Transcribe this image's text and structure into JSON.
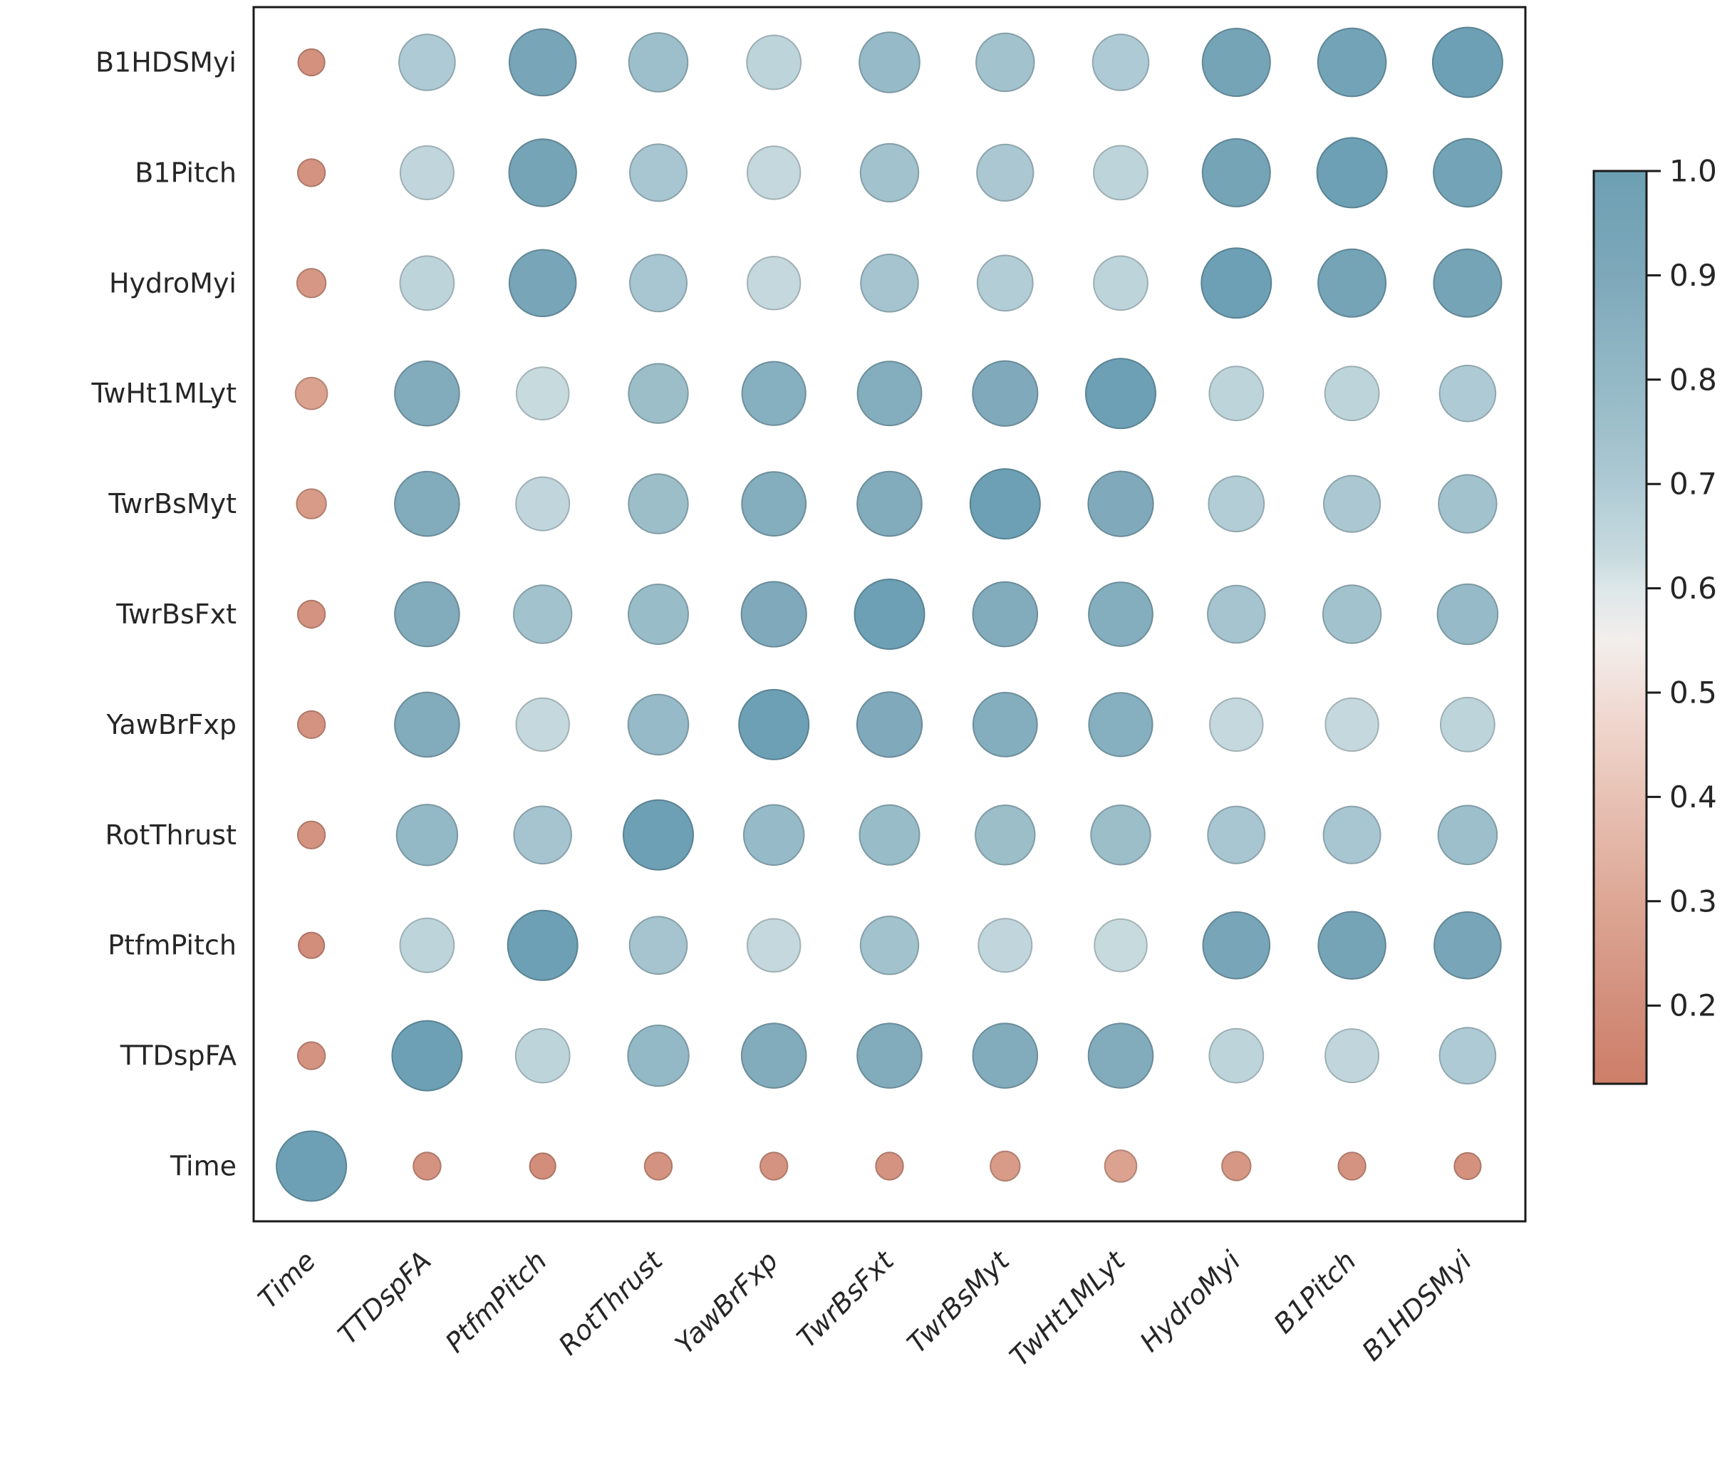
{
  "chart_data": {
    "type": "heatmap",
    "variant": "correlation-bubble-matrix",
    "title": "",
    "xlabel": "",
    "ylabel": "",
    "grid": false,
    "background_color": "#ffffff",
    "axis_color": "#1a1a1a",
    "tick_label_color": "#262626",
    "x_categories_left_to_right": [
      "Time",
      "TTDspFA",
      "PtfmPitch",
      "RotThrust",
      "YawBrFxp",
      "TwrBsFxt",
      "TwrBsMyt",
      "TwHt1MLyt",
      "HydroMyi",
      "B1Pitch",
      "B1HDSMyi"
    ],
    "rows_top_to_bottom": [
      {
        "label": "B1HDSMyi",
        "values": [
          0.21,
          0.7,
          0.93,
          0.76,
          0.66,
          0.79,
          0.74,
          0.7,
          0.95,
          0.96,
          1.0
        ]
      },
      {
        "label": "B1Pitch",
        "values": [
          0.22,
          0.65,
          0.94,
          0.72,
          0.64,
          0.74,
          0.71,
          0.66,
          0.95,
          1.0,
          0.96
        ]
      },
      {
        "label": "HydroMyi",
        "values": [
          0.24,
          0.66,
          0.93,
          0.72,
          0.64,
          0.73,
          0.69,
          0.66,
          1.0,
          0.95,
          0.95
        ]
      },
      {
        "label": "TwHt1MLyt",
        "values": [
          0.28,
          0.88,
          0.63,
          0.77,
          0.86,
          0.87,
          0.89,
          1.0,
          0.66,
          0.66,
          0.7
        ]
      },
      {
        "label": "TwrBsMyt",
        "values": [
          0.25,
          0.88,
          0.65,
          0.77,
          0.87,
          0.88,
          1.0,
          0.89,
          0.69,
          0.71,
          0.74
        ]
      },
      {
        "label": "TwrBsFxt",
        "values": [
          0.22,
          0.88,
          0.74,
          0.78,
          0.89,
          1.0,
          0.88,
          0.87,
          0.73,
          0.74,
          0.79
        ]
      },
      {
        "label": "YawBrFxp",
        "values": [
          0.22,
          0.88,
          0.64,
          0.79,
          1.0,
          0.89,
          0.87,
          0.86,
          0.64,
          0.64,
          0.66
        ]
      },
      {
        "label": "RotThrust",
        "values": [
          0.22,
          0.8,
          0.73,
          1.0,
          0.79,
          0.78,
          0.77,
          0.77,
          0.72,
          0.72,
          0.76
        ]
      },
      {
        "label": "PtfmPitch",
        "values": [
          0.2,
          0.66,
          1.0,
          0.73,
          0.64,
          0.74,
          0.65,
          0.63,
          0.93,
          0.94,
          0.93
        ]
      },
      {
        "label": "TTDspFA",
        "values": [
          0.22,
          1.0,
          0.66,
          0.8,
          0.88,
          0.88,
          0.88,
          0.88,
          0.66,
          0.65,
          0.7
        ]
      },
      {
        "label": "Time",
        "values": [
          1.0,
          0.22,
          0.2,
          0.22,
          0.22,
          0.22,
          0.25,
          0.28,
          0.24,
          0.22,
          0.21
        ]
      }
    ],
    "colorbar": {
      "orientation": "vertical",
      "position": "right",
      "tick_labels": [
        "1.0",
        "0.9",
        "0.8",
        "0.7",
        "0.6",
        "0.5",
        "0.4",
        "0.3",
        "0.2"
      ],
      "tick_values": [
        1.0,
        0.9,
        0.8,
        0.7,
        0.6,
        0.5,
        0.4,
        0.3,
        0.2
      ],
      "vmin": 0.125,
      "vmax": 1.0
    },
    "colormap_stops": [
      [
        0.125,
        "#cd7e68"
      ],
      [
        0.2,
        "#d28e7b"
      ],
      [
        0.3,
        "#dda795"
      ],
      [
        0.4,
        "#e8c2b5"
      ],
      [
        0.48,
        "#f0d9d1"
      ],
      [
        0.55,
        "#f3eeec"
      ],
      [
        0.6,
        "#dde7e9"
      ],
      [
        0.63,
        "#c7dade"
      ],
      [
        0.66,
        "#bdd4db"
      ],
      [
        0.7,
        "#aecad4"
      ],
      [
        0.74,
        "#a2c2cd"
      ],
      [
        0.78,
        "#98bcc8"
      ],
      [
        0.83,
        "#8db4c3"
      ],
      [
        0.88,
        "#82abbc"
      ],
      [
        0.93,
        "#78a5b8"
      ],
      [
        1.0,
        "#6da0b4"
      ]
    ],
    "negative_end_color": "#cd7e68",
    "positive_end_color": "#6da0b4",
    "size_encoding": {
      "max_radius_px": 49,
      "exponent": 0.62
    }
  }
}
